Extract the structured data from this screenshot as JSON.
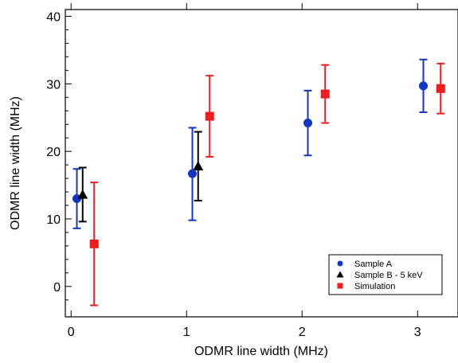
{
  "chart_data": {
    "type": "scatter",
    "title": "",
    "xlabel": "ODMR line width (MHz)",
    "ylabel": "ODMR line width (MHz)",
    "xlim": [
      -0.05,
      3.35
    ],
    "ylim": [
      -4.5,
      41
    ],
    "x_ticks": [
      0,
      1,
      2,
      3
    ],
    "y_ticks": [
      0,
      10,
      20,
      30,
      40
    ],
    "x_tick_labels": [
      "0",
      "1",
      "2",
      "3"
    ],
    "y_tick_labels": [
      "0",
      "10",
      "20",
      "30",
      "40"
    ],
    "grid": false,
    "legend_position": "bottom-right",
    "series": [
      {
        "name": "Sample A",
        "marker": "circle",
        "color": "#1035c8",
        "points": [
          {
            "x": 0.05,
            "y": 13.0,
            "y_low": 8.6,
            "y_high": 17.4
          },
          {
            "x": 1.05,
            "y": 16.7,
            "y_low": 9.8,
            "y_high": 23.5
          },
          {
            "x": 2.05,
            "y": 24.2,
            "y_low": 19.4,
            "y_high": 29.0
          },
          {
            "x": 3.05,
            "y": 29.7,
            "y_low": 25.8,
            "y_high": 33.6
          }
        ]
      },
      {
        "name": "Sample B - 5 keV",
        "marker": "triangle",
        "color": "#000000",
        "points": [
          {
            "x": 0.1,
            "y": 13.6,
            "y_low": 9.6,
            "y_high": 17.6
          },
          {
            "x": 1.1,
            "y": 17.8,
            "y_low": 12.7,
            "y_high": 22.9
          }
        ]
      },
      {
        "name": "Simulation",
        "marker": "square",
        "color": "#ee1c1c",
        "points": [
          {
            "x": 0.2,
            "y": 6.3,
            "y_low": -2.8,
            "y_high": 15.4
          },
          {
            "x": 1.2,
            "y": 25.2,
            "y_low": 19.2,
            "y_high": 31.2
          },
          {
            "x": 2.2,
            "y": 28.5,
            "y_low": 24.2,
            "y_high": 32.8
          },
          {
            "x": 3.2,
            "y": 29.3,
            "y_low": 25.6,
            "y_high": 33.0
          }
        ]
      }
    ]
  }
}
